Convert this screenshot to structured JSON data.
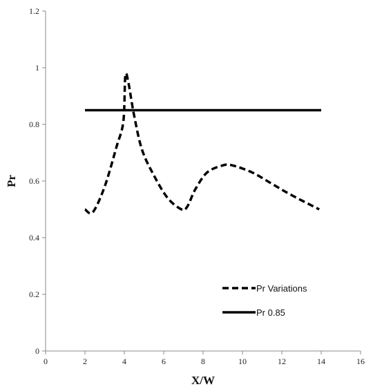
{
  "chart_data": {
    "type": "line",
    "title": "",
    "xlabel": "X/W",
    "ylabel": "Pr",
    "xlim": [
      0,
      16
    ],
    "ylim": [
      0,
      1.2
    ],
    "xticks": [
      0,
      2,
      4,
      6,
      8,
      10,
      12,
      14,
      16
    ],
    "yticks": [
      0,
      0.2,
      0.4,
      0.6,
      0.8,
      1,
      1.2
    ],
    "xtick_labels": [
      "0",
      "2",
      "4",
      "6",
      "8",
      "10",
      "12",
      "14",
      "16"
    ],
    "ytick_labels": [
      "0",
      "0.2",
      "0.4",
      "0.6",
      "0.8",
      "1",
      "1.2"
    ],
    "grid": false,
    "legend_position": "bottom-right",
    "series": [
      {
        "name": "Pr Variations",
        "style": "dashed",
        "color": "#000000",
        "x": [
          2,
          2.4,
          3.0,
          3.6,
          3.95,
          4.05,
          4.2,
          4.5,
          4.9,
          5.5,
          6.2,
          6.9,
          7.2,
          7.6,
          8.2,
          9.0,
          9.5,
          10.5,
          11.5,
          12.5,
          13.9
        ],
        "y": [
          0.5,
          0.49,
          0.58,
          0.72,
          0.81,
          0.97,
          0.95,
          0.83,
          0.71,
          0.62,
          0.54,
          0.5,
          0.51,
          0.57,
          0.63,
          0.655,
          0.655,
          0.63,
          0.59,
          0.55,
          0.5
        ]
      },
      {
        "name": "Pr 0.85",
        "style": "solid",
        "color": "#000000",
        "x": [
          2,
          14
        ],
        "y": [
          0.85,
          0.85
        ]
      }
    ]
  }
}
